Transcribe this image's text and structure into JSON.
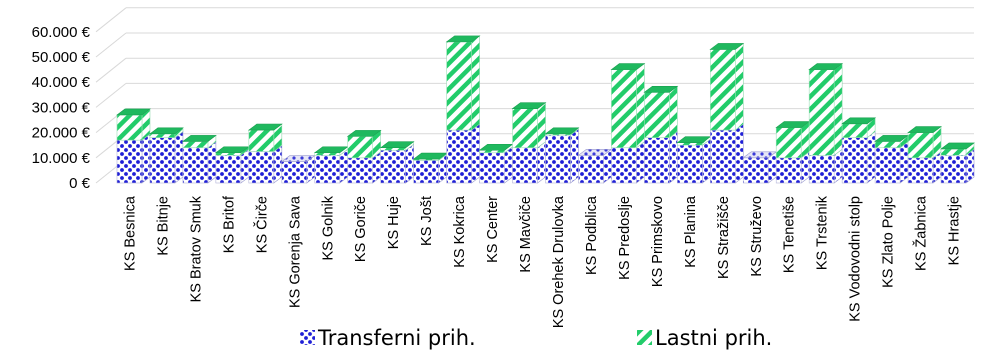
{
  "chart_data": {
    "type": "bar",
    "stacked": true,
    "style": "3d",
    "title": "",
    "xlabel": "",
    "ylabel": "",
    "ylim": [
      0,
      65000
    ],
    "yticks": [
      0,
      10000,
      20000,
      30000,
      40000,
      50000,
      60000
    ],
    "ytick_labels": [
      "0 €",
      "10.000 €",
      "20.000 €",
      "30.000 €",
      "40.000 €",
      "50.000 €",
      "60.000 €"
    ],
    "grid": true,
    "legend_position": "bottom",
    "categories": [
      "KS Besnica",
      "KS Bitnje",
      "KS Bratov Smuk",
      "KS Britof",
      "KS Čirče",
      "KS Gorenja Sava",
      "KS Golnik",
      "KS Goriče",
      "KS Huje",
      "KS Jošt",
      "KS Kokrica",
      "KS Center",
      "KS Mavčiče",
      "KS Orehek Drulovka",
      "KS Podblica",
      "KS Predoslje",
      "KS Primskovo",
      "KS Planina",
      "KS Stražišče",
      "KS Struževo",
      "KS Tenetiše",
      "KS Trstenik",
      "KS Vodovodni stolp",
      "KS Zlato Polje",
      "KS Žabnica",
      "KS Hrastje"
    ],
    "series": [
      {
        "name": "Transferni prih.",
        "color": "#1f1fd6",
        "pattern": "dots",
        "values": [
          17000,
          18000,
          14000,
          11000,
          12500,
          8500,
          11000,
          10000,
          13000,
          9000,
          21000,
          12000,
          14000,
          19000,
          11000,
          14000,
          18000,
          15000,
          21000,
          10000,
          10000,
          11000,
          18000,
          14000,
          10000,
          11000
        ]
      },
      {
        "name": "Lastni prih.",
        "color": "#22cc6a",
        "pattern": "diagonal-stripes",
        "values": [
          10000,
          1500,
          2500,
          1000,
          8500,
          0,
          1000,
          8500,
          1000,
          500,
          35000,
          1000,
          15500,
          500,
          0,
          31000,
          18000,
          1000,
          32000,
          0,
          12000,
          34000,
          5500,
          2500,
          10000,
          2500
        ]
      }
    ]
  }
}
